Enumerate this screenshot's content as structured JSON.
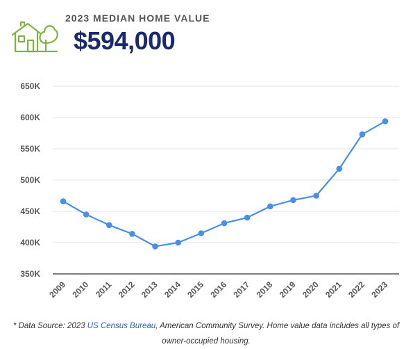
{
  "header": {
    "label": "2023 MEDIAN HOME VALUE",
    "value": "$594,000",
    "icon": "house-tree-icon",
    "icon_color": "#7cb342"
  },
  "chart_data": {
    "type": "line",
    "title": "",
    "xlabel": "",
    "ylabel": "",
    "categories": [
      "2009",
      "2010",
      "2011",
      "2012",
      "2013",
      "2014",
      "2015",
      "2016",
      "2017",
      "2018",
      "2019",
      "2020",
      "2021",
      "2022",
      "2023"
    ],
    "series": [
      {
        "name": "",
        "color": "#4a8fe7",
        "values": [
          466000,
          445000,
          428000,
          414000,
          394000,
          400000,
          415000,
          431000,
          440000,
          458000,
          468000,
          475000,
          518000,
          573000,
          594000
        ]
      }
    ],
    "ylim": [
      350000,
      650000
    ],
    "yticks": [
      {
        "value": 350000,
        "label": "350K"
      },
      {
        "value": 400000,
        "label": "400K"
      },
      {
        "value": 450000,
        "label": "450K"
      },
      {
        "value": 500000,
        "label": "500K"
      },
      {
        "value": 550000,
        "label": "550K"
      },
      {
        "value": 600000,
        "label": "600K"
      },
      {
        "value": 650000,
        "label": "650K"
      }
    ],
    "grid": true,
    "legend": "none"
  },
  "footnote": {
    "prefix": "* Data Source: 2023 ",
    "link_text": "US Census Bureau",
    "suffix": ", American Community Survey. Home value data includes all types of owner-occupied housing."
  }
}
